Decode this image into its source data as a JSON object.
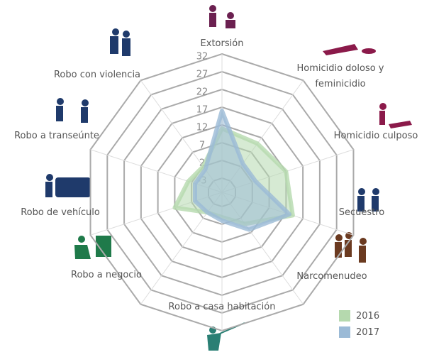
{
  "chart_data": {
    "type": "radar",
    "categories": [
      "Extorsión",
      "Homicidio doloso y feminicidio",
      "Homicidio culposo",
      "Secuestro",
      "Narcomenudeo",
      "Robo a casa habitación",
      "Robo a negocio",
      "Robo de vehículo",
      "Robo a transeúnte",
      "Robo con violencia"
    ],
    "series": [
      {
        "name": "2016",
        "color": "#b5d9ae",
        "values": [
          11,
          10,
          12,
          14,
          4,
          0,
          0,
          7,
          3,
          2
        ]
      },
      {
        "name": "2017",
        "color": "#9bbad6",
        "values": [
          16,
          3,
          3,
          13,
          6,
          1,
          0,
          1,
          1,
          1
        ]
      }
    ],
    "ylim": [
      -7,
      32
    ],
    "yticks": [
      -3,
      2,
      7,
      12,
      17,
      22,
      27,
      32
    ],
    "grid": true
  }
}
